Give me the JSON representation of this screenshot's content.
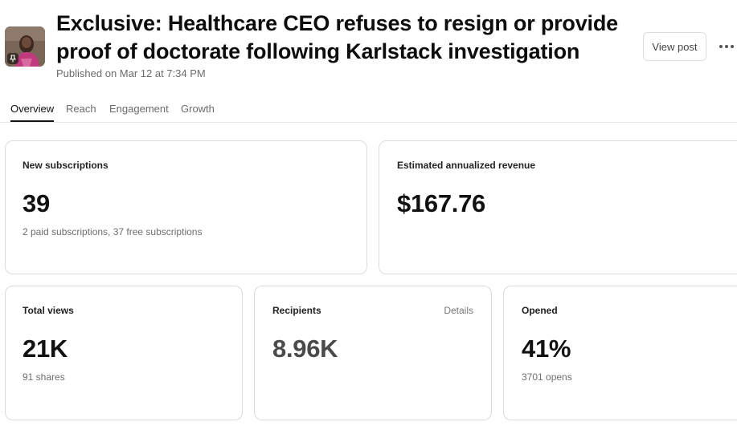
{
  "post": {
    "title": "Exclusive: Healthcare CEO refuses to resign or provide proof of doctorate following Karlstack investigation",
    "published": "Published on Mar 12 at 7:34 PM",
    "view_label": "View post",
    "more_icon": "more-horizontal-icon",
    "thumbnail_icon": "pin-icon"
  },
  "tabs": [
    {
      "label": "Overview",
      "active": true
    },
    {
      "label": "Reach",
      "active": false
    },
    {
      "label": "Engagement",
      "active": false
    },
    {
      "label": "Growth",
      "active": false
    }
  ],
  "stats": {
    "subscriptions": {
      "label": "New subscriptions",
      "value": "39",
      "sub": "2 paid subscriptions, 37 free subscriptions"
    },
    "revenue": {
      "label": "Estimated annualized revenue",
      "value": "$167.76"
    },
    "views": {
      "label": "Total views",
      "value": "21K",
      "sub": "91 shares"
    },
    "recipients": {
      "label": "Recipients",
      "link": "Details",
      "value": "8.96K"
    },
    "opened": {
      "label": "Opened",
      "value": "41%",
      "sub": "3701 opens"
    }
  }
}
